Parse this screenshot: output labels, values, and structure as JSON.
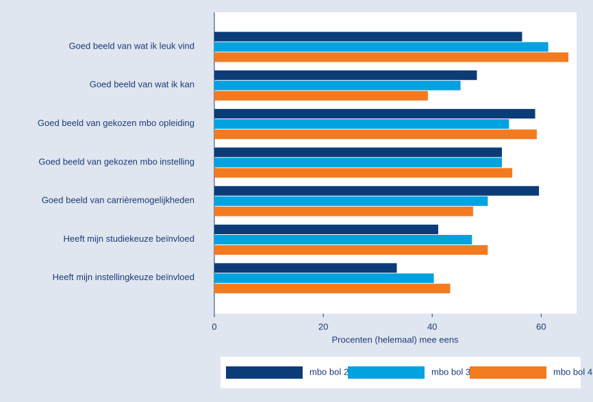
{
  "chart_data": {
    "type": "barh",
    "categories": [
      "Goed beeld van wat ik leuk vind",
      "Goed beeld van wat ik kan",
      "Goed beeld van gekozen mbo opleiding",
      "Goed beeld van gekozen mbo instelling",
      "Goed beeld van carrièremogelijkheden",
      "Heeft mijn studiekeuze beïnvloed",
      "Heeft mijn instellingkeuze beïnvloed"
    ],
    "series": [
      {
        "name": "mbo bol 2",
        "color": "#0b3c78",
        "values": [
          56.5,
          48.2,
          58.9,
          52.8,
          59.6,
          41.1,
          33.5
        ]
      },
      {
        "name": "mbo bol 3",
        "color": "#00a3e0",
        "values": [
          61.3,
          45.2,
          54.1,
          52.8,
          50.2,
          47.3,
          40.3
        ]
      },
      {
        "name": "mbo bol 4",
        "color": "#f47a20",
        "values": [
          65.0,
          39.2,
          59.2,
          54.7,
          47.5,
          50.2,
          43.3
        ]
      }
    ],
    "xlabel": "Procenten (helemaal) mee eens",
    "xlim": [
      0,
      66.5
    ],
    "xticks": [
      0,
      20,
      40,
      60
    ]
  }
}
